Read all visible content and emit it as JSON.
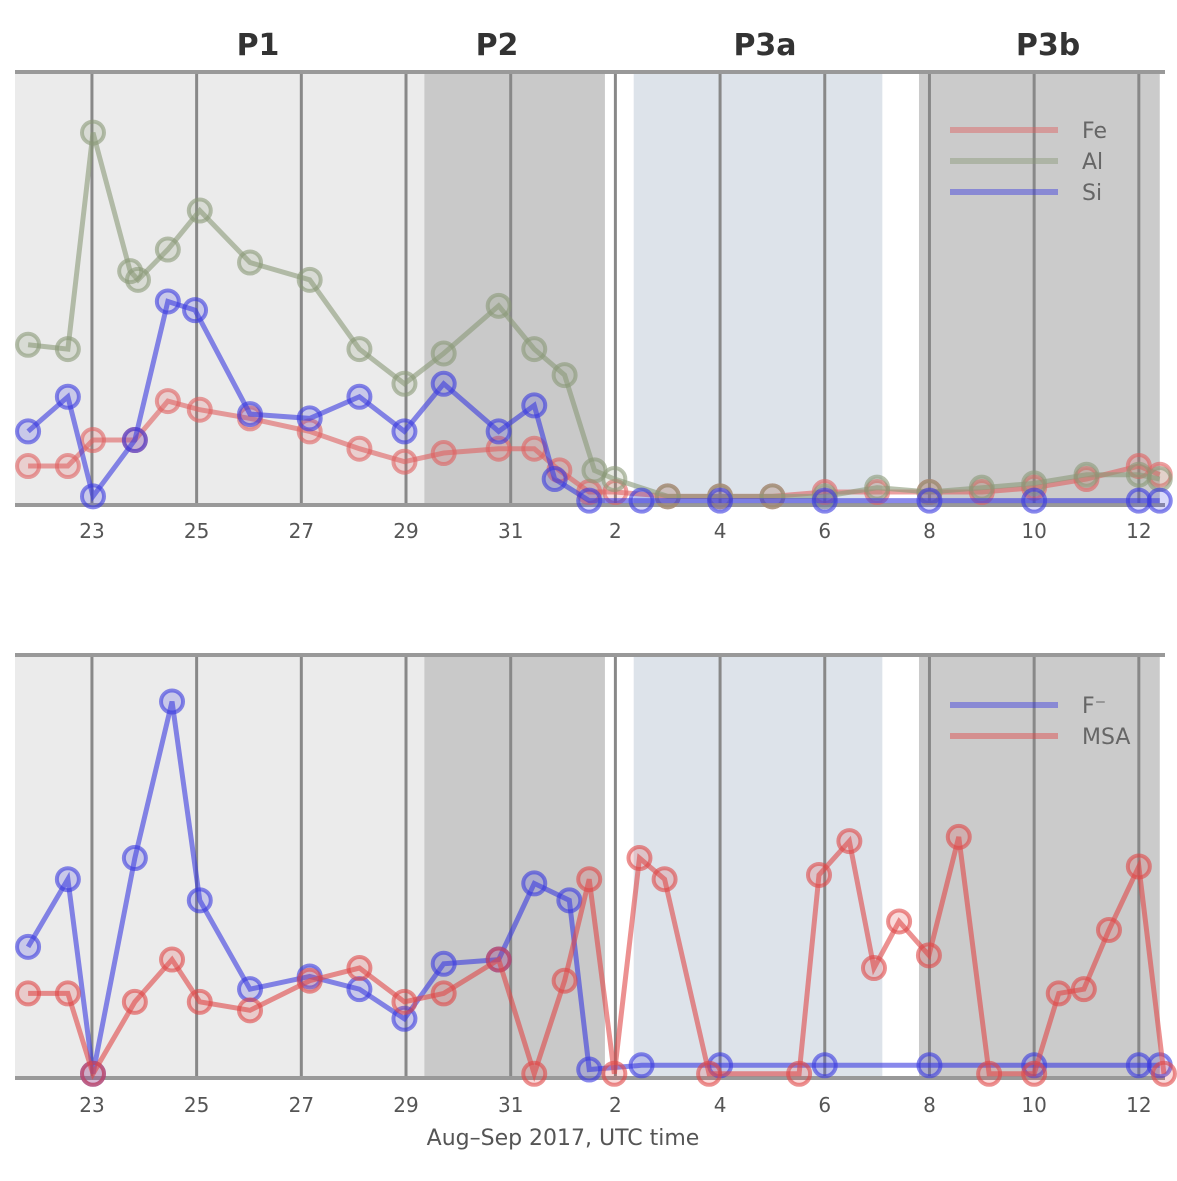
{
  "chart_data": [
    {
      "type": "line",
      "title": "",
      "xlabel": "",
      "ylabel": "",
      "xlim": [
        -1.47,
        20.5
      ],
      "ylim": [
        0,
        100
      ],
      "grid": true,
      "legend_position": "top-right",
      "periods": [
        {
          "label": "P1",
          "start": -1.47,
          "end": 6.35,
          "color": "#ebebeb"
        },
        {
          "label": "P2",
          "start": 6.35,
          "end": 9.8,
          "color": "#c9c9c9"
        },
        {
          "label": "P3a",
          "start": 10.35,
          "end": 15.1,
          "color": "#dde3ea"
        },
        {
          "label": "P3b",
          "start": 15.8,
          "end": 20.4,
          "color": "#cbcbcb"
        }
      ],
      "ticks": [
        0,
        2,
        4,
        6,
        8,
        10,
        12,
        14,
        16,
        18,
        20
      ],
      "tick_labels": [
        "23",
        "25",
        "27",
        "29",
        "31",
        "2",
        "4",
        "6",
        "8",
        "10",
        "12"
      ],
      "series": [
        {
          "name": "Fe",
          "color": "#e06060",
          "points": [
            [
              -1.22,
              9
            ],
            [
              -0.46,
              9
            ],
            [
              0.02,
              15
            ],
            [
              0.82,
              15
            ],
            [
              1.45,
              24
            ],
            [
              2.06,
              22
            ],
            [
              3.02,
              20
            ],
            [
              4.16,
              17
            ],
            [
              5.11,
              13
            ],
            [
              5.97,
              10
            ],
            [
              6.72,
              12
            ],
            [
              7.77,
              13
            ],
            [
              8.45,
              13
            ],
            [
              8.93,
              8
            ],
            [
              9.5,
              3
            ],
            [
              10.0,
              3
            ],
            [
              11,
              2
            ],
            [
              12,
              2
            ],
            [
              13,
              2
            ],
            [
              14,
              3
            ],
            [
              15,
              3
            ],
            [
              16,
              3
            ],
            [
              17,
              3
            ],
            [
              18,
              4
            ],
            [
              19,
              6
            ],
            [
              20,
              9
            ],
            [
              20.4,
              7
            ]
          ]
        },
        {
          "name": "Al",
          "color": "#8a9a78",
          "points": [
            [
              -1.22,
              37
            ],
            [
              -0.46,
              36
            ],
            [
              0.02,
              86
            ],
            [
              0.73,
              54
            ],
            [
              0.88,
              52
            ],
            [
              1.45,
              59
            ],
            [
              2.06,
              68
            ],
            [
              3.02,
              56
            ],
            [
              4.16,
              52
            ],
            [
              5.11,
              36
            ],
            [
              5.97,
              28
            ],
            [
              6.72,
              35
            ],
            [
              7.77,
              46
            ],
            [
              8.45,
              36
            ],
            [
              9.03,
              30
            ],
            [
              9.6,
              8
            ],
            [
              9.98,
              6
            ],
            [
              11,
              2
            ],
            [
              12,
              2
            ],
            [
              13,
              2
            ],
            [
              14,
              2
            ],
            [
              15,
              4
            ],
            [
              16,
              3
            ],
            [
              17,
              4
            ],
            [
              18,
              5
            ],
            [
              19,
              7
            ],
            [
              20,
              7
            ],
            [
              20.4,
              6
            ]
          ]
        },
        {
          "name": "Si",
          "color": "#3a3ae0",
          "points": [
            [
              -1.22,
              17
            ],
            [
              -0.46,
              25
            ],
            [
              0.02,
              2
            ],
            [
              0.82,
              15
            ],
            [
              1.45,
              47
            ],
            [
              1.97,
              45
            ],
            [
              3.02,
              21
            ],
            [
              4.16,
              20
            ],
            [
              5.11,
              25
            ],
            [
              5.97,
              17
            ],
            [
              6.72,
              28
            ],
            [
              7.77,
              17
            ],
            [
              8.45,
              23
            ],
            [
              8.84,
              6
            ],
            [
              9.5,
              1
            ],
            [
              10.5,
              1
            ],
            [
              12,
              1
            ],
            [
              14,
              1
            ],
            [
              16,
              1
            ],
            [
              18,
              1
            ],
            [
              20,
              1
            ],
            [
              20.4,
              1
            ]
          ]
        }
      ]
    },
    {
      "type": "line",
      "title": "",
      "xlabel": "Aug–Sep 2017, UTC time",
      "ylabel": "",
      "xlim": [
        -1.47,
        20.5
      ],
      "ylim": [
        0,
        100
      ],
      "grid": true,
      "legend_position": "top-right",
      "ticks": [
        0,
        2,
        4,
        6,
        8,
        10,
        12,
        14,
        16,
        18,
        20
      ],
      "tick_labels": [
        "23",
        "25",
        "27",
        "29",
        "31",
        "2",
        "4",
        "6",
        "8",
        "10",
        "12"
      ],
      "series": [
        {
          "name": "F⁻",
          "color": "#3a3ae0",
          "points": [
            [
              -1.22,
              31
            ],
            [
              -0.46,
              47
            ],
            [
              0.02,
              1
            ],
            [
              0.82,
              52
            ],
            [
              1.53,
              89
            ],
            [
              2.06,
              42
            ],
            [
              3.02,
              21
            ],
            [
              4.16,
              24
            ],
            [
              5.11,
              21
            ],
            [
              5.97,
              14
            ],
            [
              6.72,
              27
            ],
            [
              7.77,
              28
            ],
            [
              8.45,
              46
            ],
            [
              9.12,
              42
            ],
            [
              9.5,
              2
            ],
            [
              10.5,
              3
            ],
            [
              12,
              3
            ],
            [
              14,
              3
            ],
            [
              16,
              3
            ],
            [
              18,
              3
            ],
            [
              20,
              3
            ],
            [
              20.4,
              3
            ]
          ]
        },
        {
          "name": "MSA",
          "color": "#e04848",
          "points": [
            [
              -1.22,
              20
            ],
            [
              -0.46,
              20
            ],
            [
              0.02,
              1
            ],
            [
              0.82,
              18
            ],
            [
              1.53,
              28
            ],
            [
              2.06,
              18
            ],
            [
              3.02,
              16
            ],
            [
              4.16,
              23
            ],
            [
              5.11,
              26
            ],
            [
              5.97,
              18
            ],
            [
              6.72,
              20
            ],
            [
              7.77,
              28
            ],
            [
              8.45,
              1
            ],
            [
              9.03,
              23
            ],
            [
              9.5,
              47
            ],
            [
              9.98,
              1
            ],
            [
              10.46,
              52
            ],
            [
              10.94,
              47
            ],
            [
              11.79,
              1
            ],
            [
              13.51,
              1
            ],
            [
              13.89,
              48
            ],
            [
              14.47,
              56
            ],
            [
              14.94,
              26
            ],
            [
              15.42,
              37
            ],
            [
              15.99,
              29
            ],
            [
              16.56,
              57
            ],
            [
              17.14,
              1
            ],
            [
              18.0,
              1
            ],
            [
              18.47,
              20
            ],
            [
              18.95,
              21
            ],
            [
              19.43,
              35
            ],
            [
              20.0,
              50
            ],
            [
              20.48,
              1
            ]
          ]
        }
      ]
    }
  ]
}
